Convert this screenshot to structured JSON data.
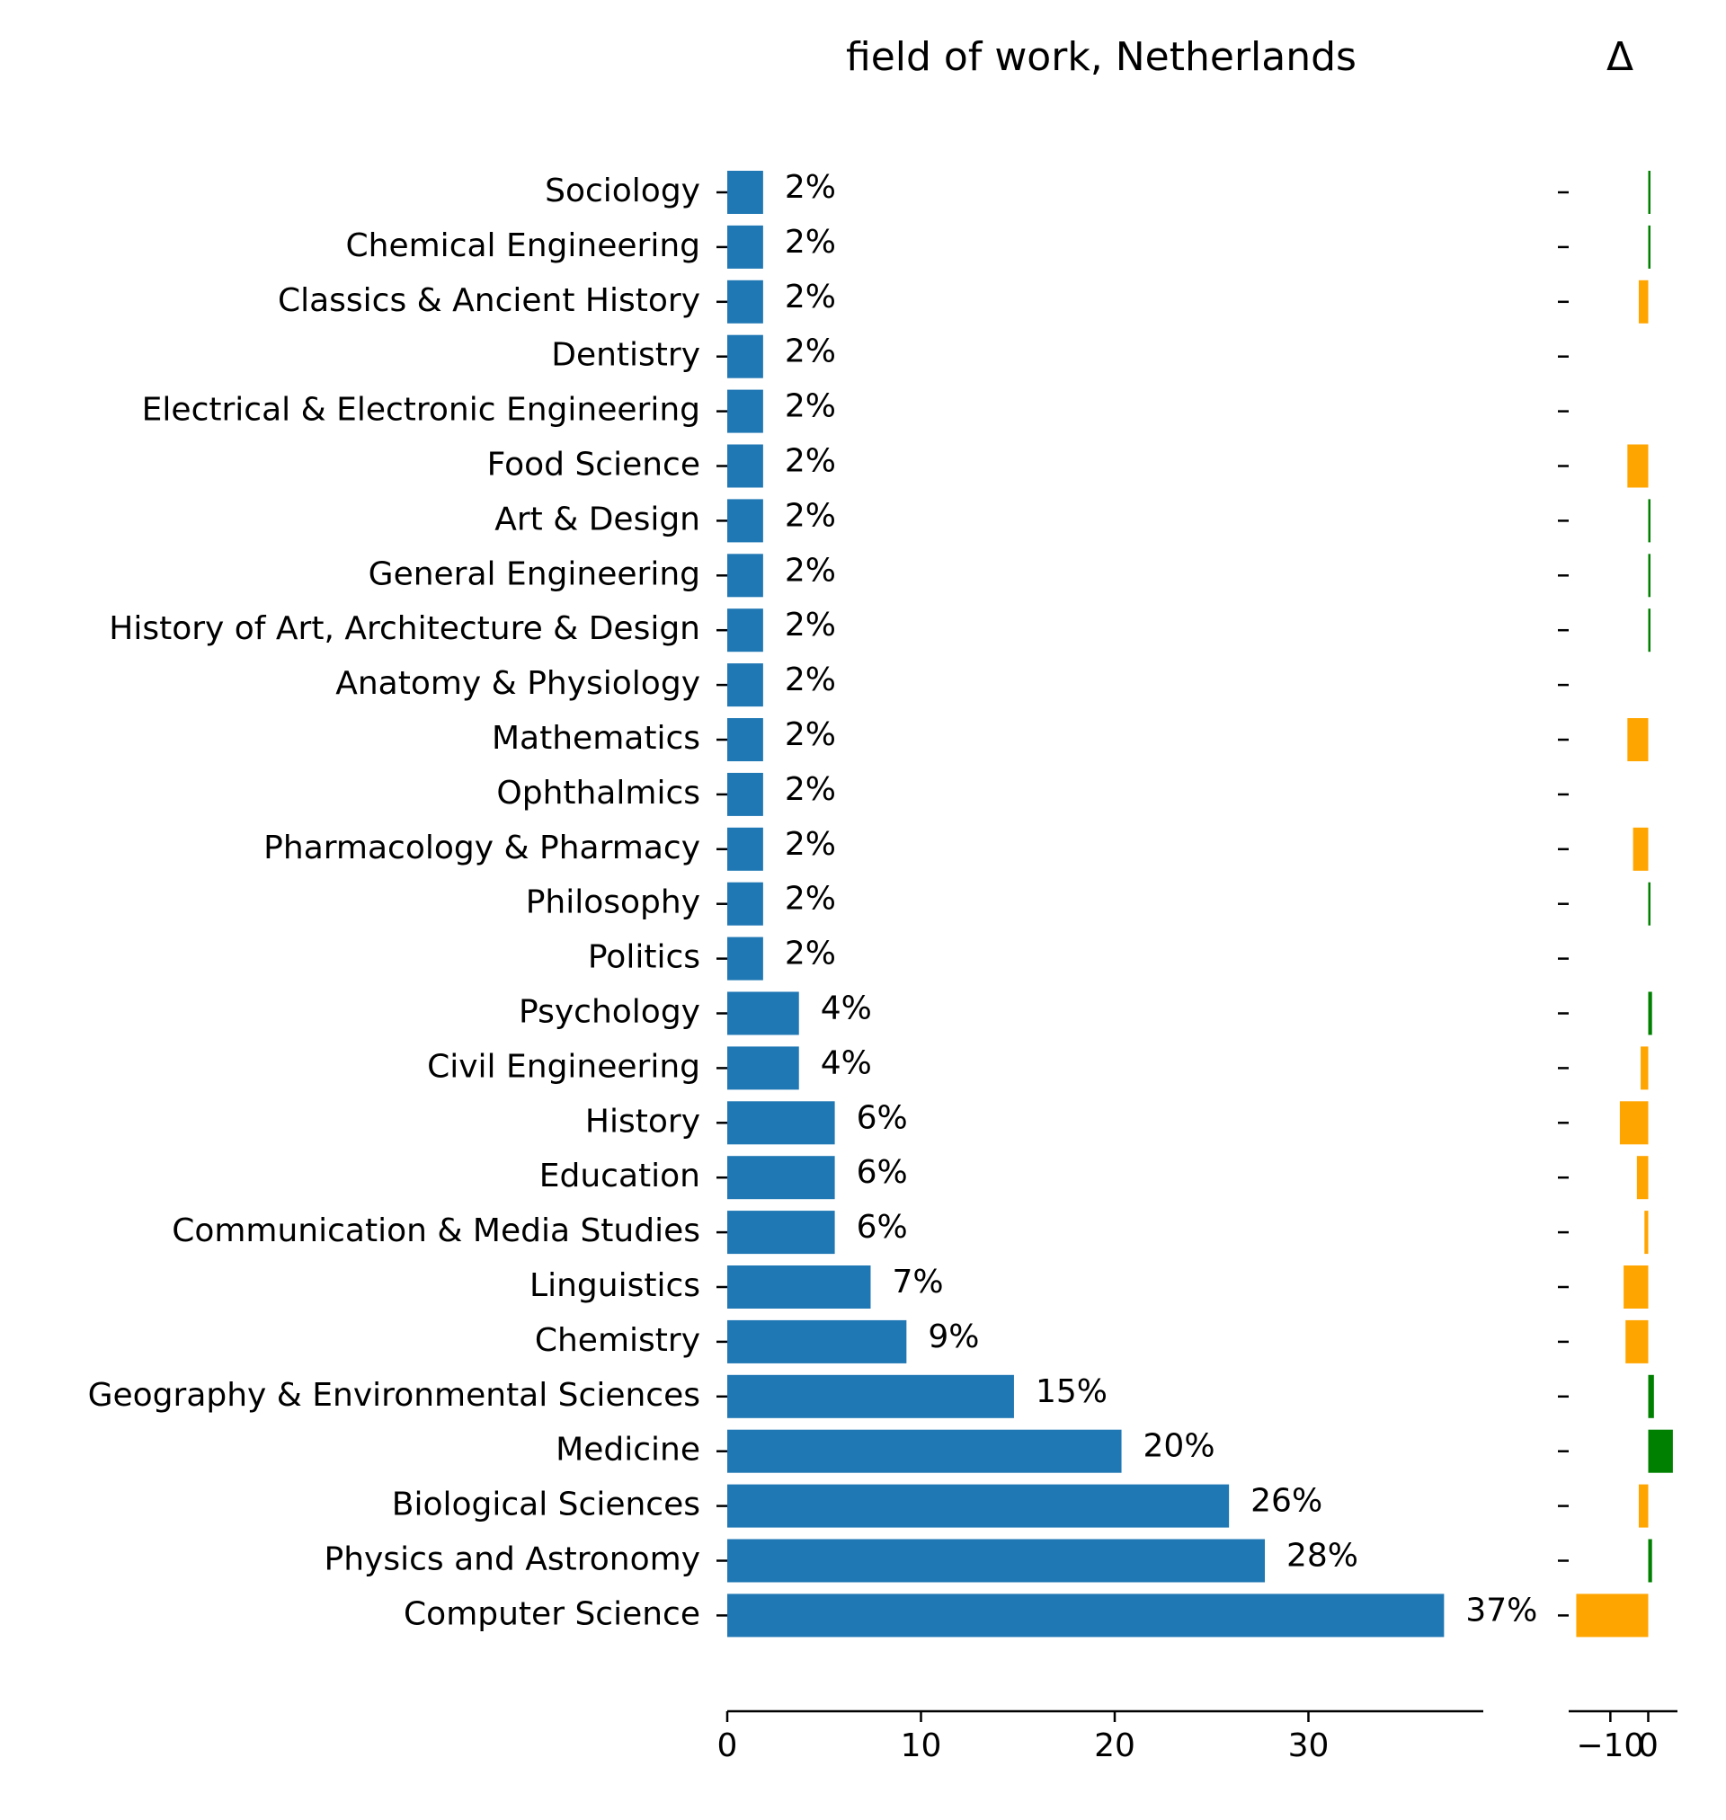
{
  "chart_data": {
    "type": "bar",
    "orientation": "horizontal",
    "title": "field of work, Netherlands",
    "delta_title": "Δ",
    "categories": [
      "Sociology",
      "Chemical Engineering",
      "Classics & Ancient History",
      "Dentistry",
      "Electrical & Electronic Engineering",
      "Food Science",
      "Art & Design",
      "General Engineering",
      "History of Art, Architecture & Design",
      "Anatomy & Physiology",
      "Mathematics",
      "Ophthalmics",
      "Pharmacology & Pharmacy",
      "Philosophy",
      "Politics",
      "Psychology",
      "Civil Engineering",
      "History",
      "Education",
      "Communication & Media Studies",
      "Linguistics",
      "Chemistry",
      "Geography & Environmental Sciences",
      "Medicine",
      "Biological Sciences",
      "Physics and Astronomy",
      "Computer Science"
    ],
    "values": [
      1.85,
      1.85,
      1.85,
      1.85,
      1.85,
      1.85,
      1.85,
      1.85,
      1.85,
      1.85,
      1.85,
      1.85,
      1.85,
      1.85,
      1.85,
      3.7,
      3.7,
      5.55,
      5.55,
      5.55,
      7.4,
      9.25,
      14.8,
      20.35,
      25.9,
      27.75,
      37.0
    ],
    "value_labels": [
      "2%",
      "2%",
      "2%",
      "2%",
      "2%",
      "2%",
      "2%",
      "2%",
      "2%",
      "2%",
      "2%",
      "2%",
      "2%",
      "2%",
      "2%",
      "4%",
      "4%",
      "6%",
      "6%",
      "6%",
      "7%",
      "9%",
      "15%",
      "20%",
      "26%",
      "28%",
      "37%"
    ],
    "delta_values": [
      0.3,
      0.3,
      -2.5,
      0,
      0,
      -5.5,
      0.3,
      0.3,
      0.3,
      0,
      -5.5,
      0,
      -4.0,
      0.3,
      0,
      1.0,
      -2.0,
      -7.5,
      -3.0,
      -1.0,
      -6.5,
      -6.0,
      1.5,
      6.5,
      -2.5,
      1.0,
      -19.0
    ],
    "xlim": [
      0,
      39
    ],
    "xticks": [
      0,
      10,
      20,
      30
    ],
    "delta_xlim": [
      -21,
      7.5
    ],
    "delta_xticks": [
      -10,
      0
    ],
    "delta_tick_labels": [
      "−10",
      "0"
    ],
    "grid": false,
    "legend": "none",
    "colors": {
      "bar": "#1f77b4",
      "delta_positive": "#008000",
      "delta_negative": "#ffa500",
      "text": "#000000"
    }
  }
}
